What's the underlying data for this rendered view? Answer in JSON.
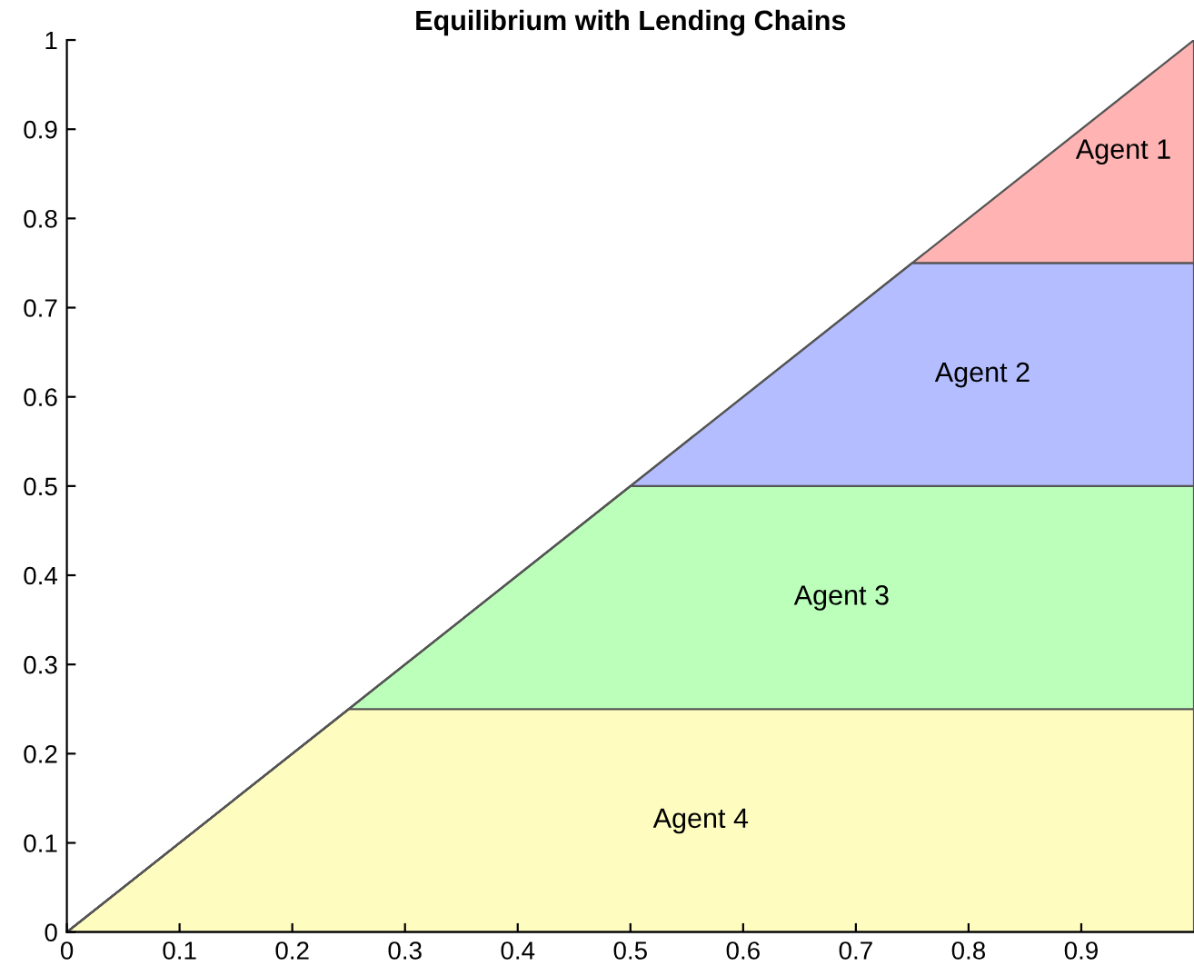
{
  "chart_data": {
    "type": "area",
    "title": "Equilibrium with Lending Chains",
    "stacked": true,
    "x": [
      0,
      0.25,
      0.5,
      0.75,
      1
    ],
    "series": [
      {
        "name": "Agent 4",
        "color": "#fffcc0",
        "values": [
          0,
          0.25,
          0.25,
          0.25,
          0.25
        ]
      },
      {
        "name": "Agent 3",
        "color": "#bbffbb",
        "values": [
          0,
          0,
          0.25,
          0.25,
          0.25
        ]
      },
      {
        "name": "Agent 2",
        "color": "#b3bdff",
        "values": [
          0,
          0,
          0,
          0.25,
          0.25
        ]
      },
      {
        "name": "Agent 1",
        "color": "#ffb3b3",
        "values": [
          0,
          0,
          0,
          0,
          0.25
        ]
      }
    ],
    "xlim": [
      0,
      1
    ],
    "xticks": [
      0,
      0.1,
      0.2,
      0.3,
      0.4,
      0.5,
      0.6,
      0.7,
      0.8,
      0.9
    ],
    "ylim": [
      0,
      1
    ],
    "yticks": [
      0,
      0.1,
      0.2,
      0.3,
      0.4,
      0.5,
      0.6,
      0.7,
      0.8,
      0.9,
      1
    ],
    "grid": false,
    "legend": false
  }
}
